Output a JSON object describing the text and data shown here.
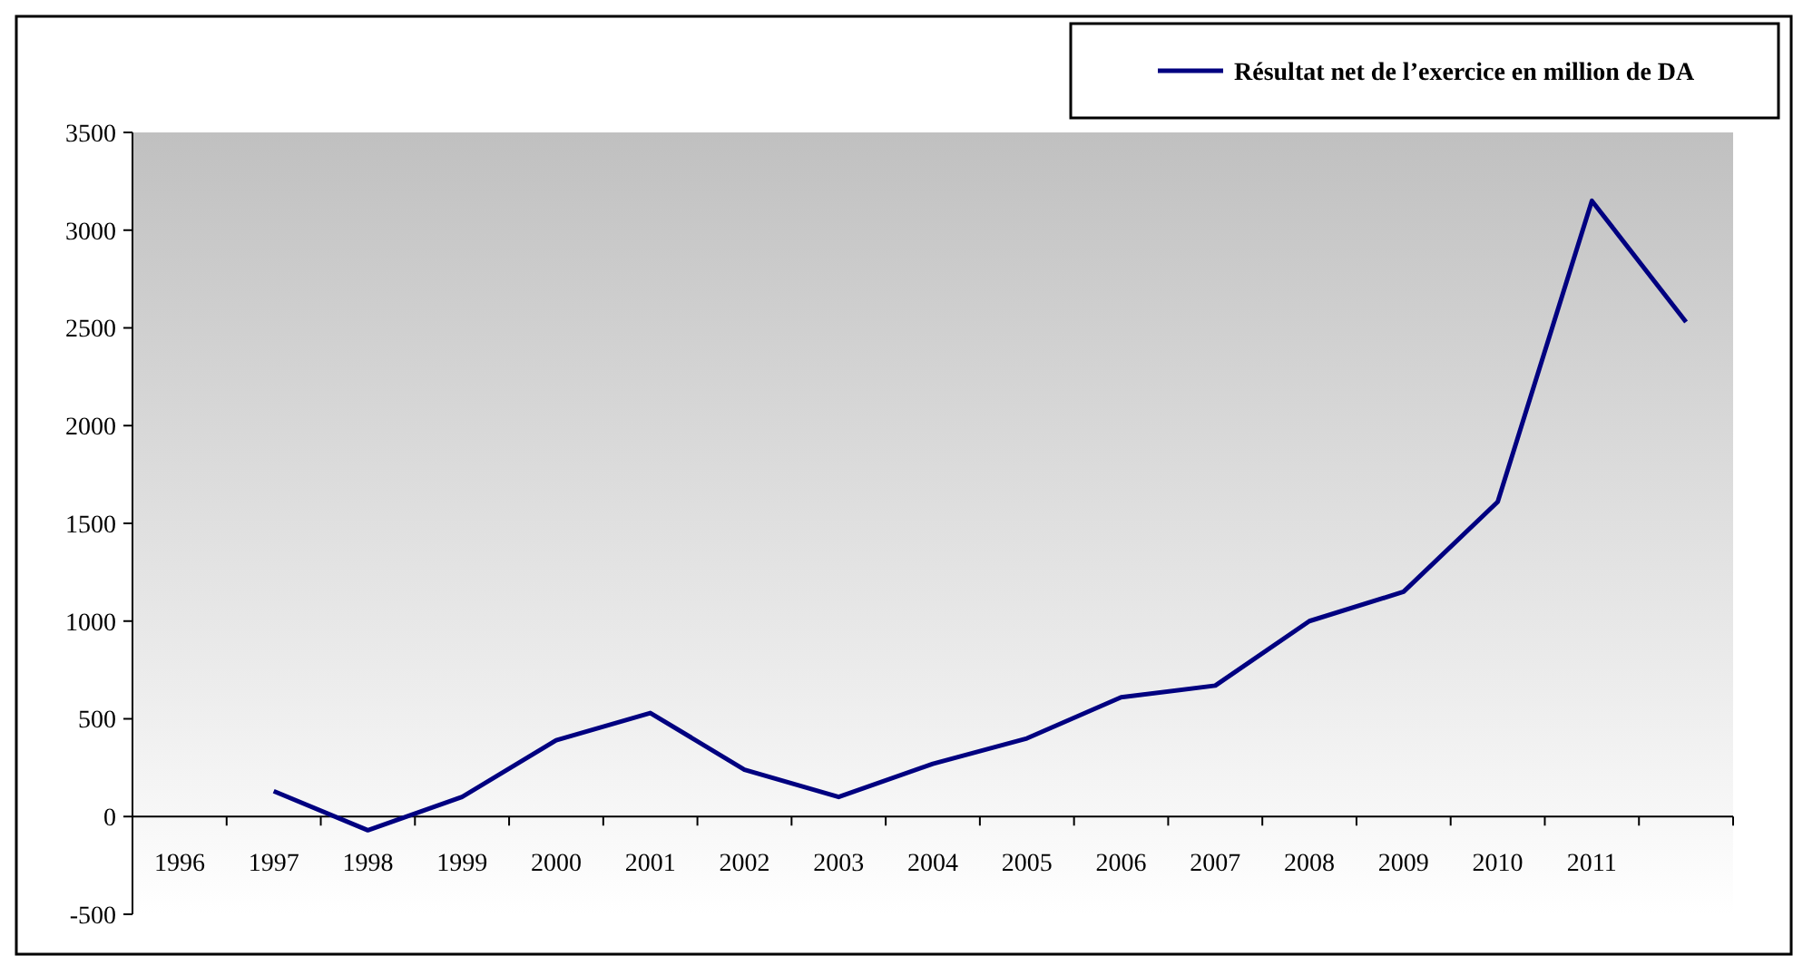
{
  "chart_data": {
    "type": "line",
    "categories": [
      "1996",
      "1997",
      "1998",
      "1999",
      "2000",
      "2001",
      "2002",
      "2003",
      "2004",
      "2005",
      "2006",
      "2007",
      "2008",
      "2009",
      "2010",
      "2011",
      null
    ],
    "series": [
      {
        "name": "Résultat net de l’exercice en million de DA",
        "color": "#000080",
        "values": [
          null,
          130,
          -70,
          100,
          390,
          530,
          240,
          100,
          270,
          400,
          610,
          670,
          1000,
          1150,
          1610,
          3150,
          2530
        ]
      }
    ],
    "ylim": [
      -500,
      3500
    ],
    "yticks": [
      -500,
      0,
      500,
      1000,
      1500,
      2000,
      2500,
      3000,
      3500
    ],
    "grid": false,
    "legend": "top right",
    "marker": "none",
    "line_style": "solid"
  }
}
